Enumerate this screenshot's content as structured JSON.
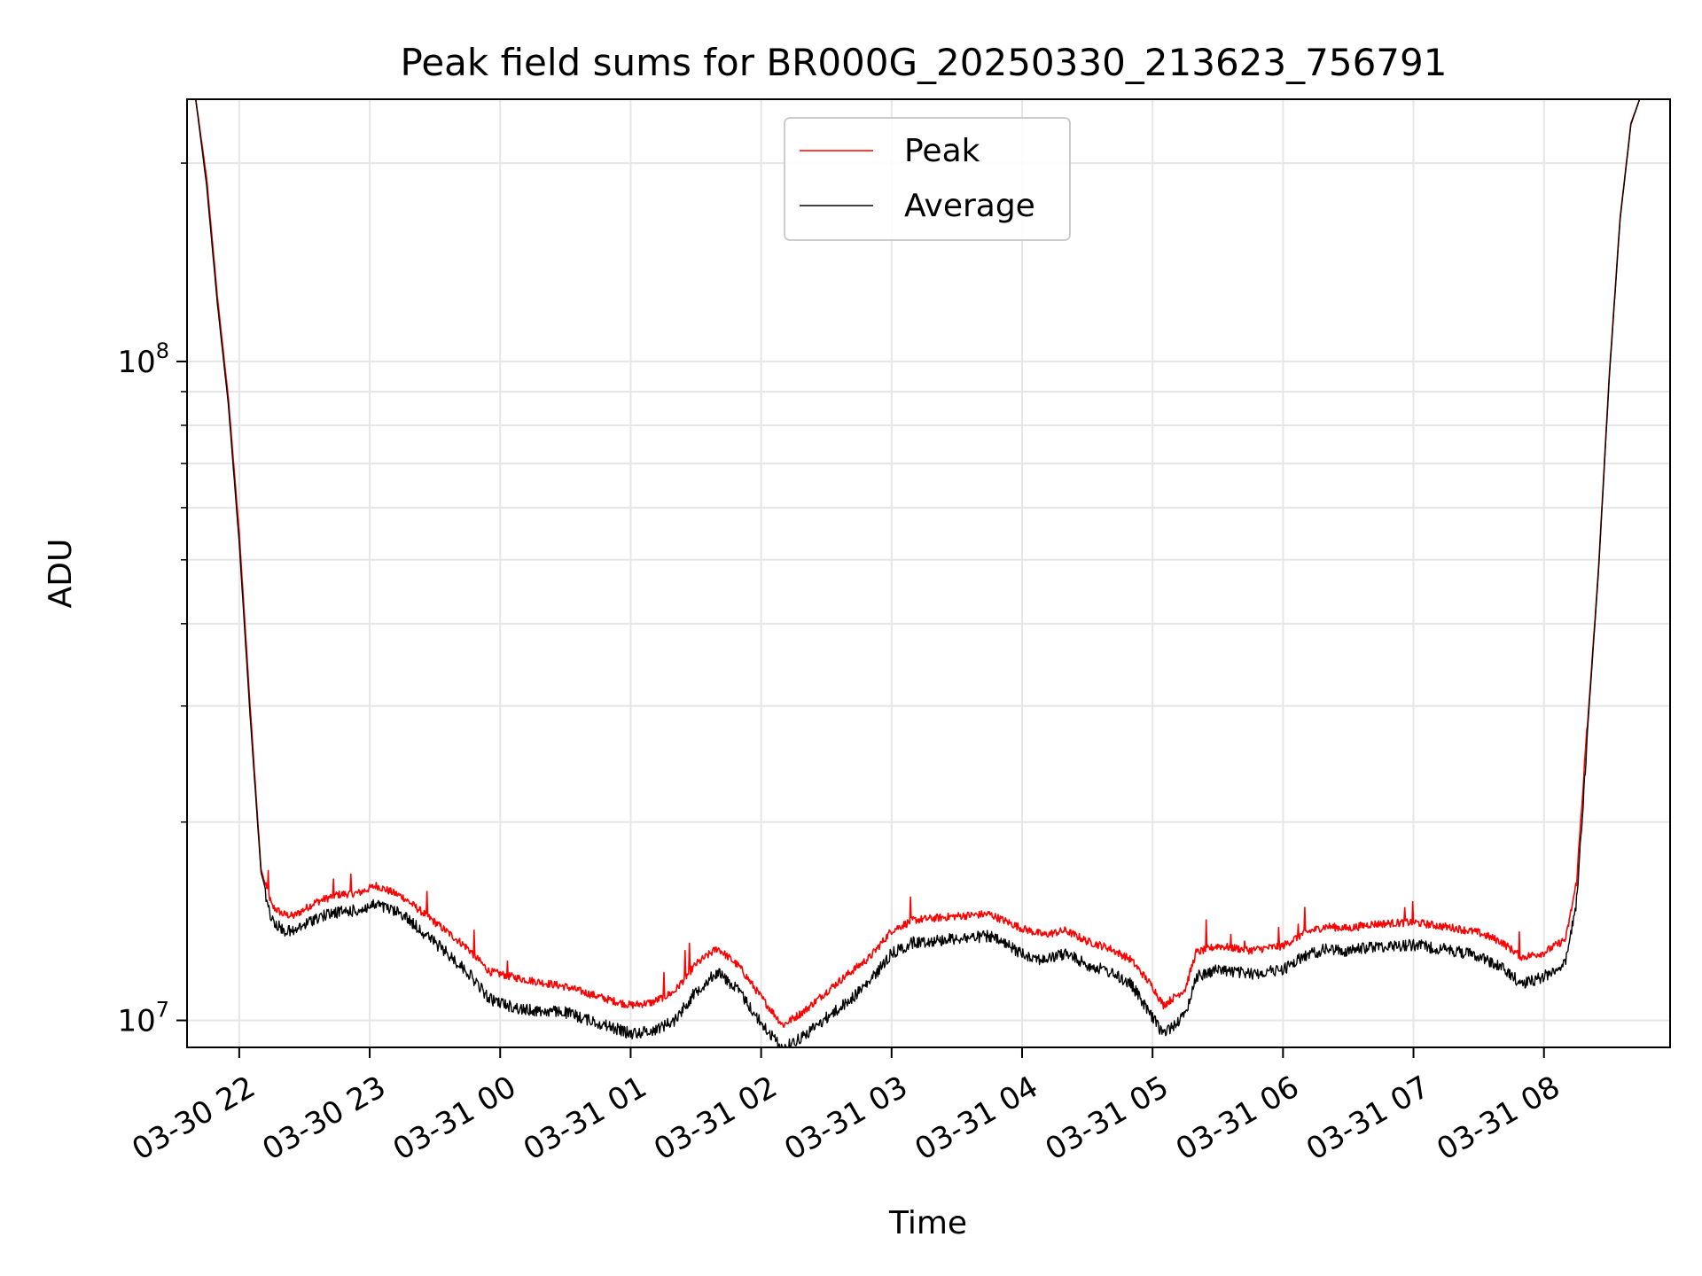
{
  "chart_data": {
    "type": "line",
    "title": "Peak field sums for BR000G_20250330_213623_756791",
    "xlabel": "Time",
    "ylabel": "ADU",
    "y_scale": "log",
    "grid": true,
    "legend_placement": "upper center",
    "x_tick_labels": [
      "03-30 22",
      "03-30 23",
      "03-31 00",
      "03-31 01",
      "03-31 02",
      "03-31 03",
      "03-31 04",
      "03-31 05",
      "03-31 06",
      "03-31 07",
      "03-31 08"
    ],
    "y_tick_labels": [
      "10^7",
      "10^8"
    ],
    "xlim": [
      "2025-03-30 21:36",
      "2025-03-31 08:58"
    ],
    "ylim": [
      9100000,
      250000000
    ],
    "series": [
      {
        "name": "Peak",
        "color": "#ff0000",
        "x": [
          "2025-03-30 21:36",
          "2025-03-30 21:40",
          "2025-03-30 21:45",
          "2025-03-30 21:50",
          "2025-03-30 21:55",
          "2025-03-30 22:00",
          "2025-03-30 22:05",
          "2025-03-30 22:10",
          "2025-03-30 22:15",
          "2025-03-30 22:20",
          "2025-03-30 22:25",
          "2025-03-30 22:35",
          "2025-03-30 22:45",
          "2025-03-30 22:55",
          "2025-03-30 23:03",
          "2025-03-30 23:15",
          "2025-03-30 23:30",
          "2025-03-30 23:45",
          "2025-03-30 23:55",
          "2025-03-31 00:10",
          "2025-03-31 00:30",
          "2025-03-31 00:50",
          "2025-03-31 01:00",
          "2025-03-31 01:10",
          "2025-03-31 01:20",
          "2025-03-31 01:30",
          "2025-03-31 01:40",
          "2025-03-31 01:50",
          "2025-03-31 02:00",
          "2025-03-31 02:10",
          "2025-03-31 02:20",
          "2025-03-31 02:30",
          "2025-03-31 02:40",
          "2025-03-31 02:50",
          "2025-03-31 03:00",
          "2025-03-31 03:10",
          "2025-03-31 03:30",
          "2025-03-31 03:45",
          "2025-03-31 04:00",
          "2025-03-31 04:10",
          "2025-03-31 04:20",
          "2025-03-31 04:30",
          "2025-03-31 04:40",
          "2025-03-31 04:50",
          "2025-03-31 05:00",
          "2025-03-31 05:05",
          "2025-03-31 05:15",
          "2025-03-31 05:20",
          "2025-03-31 05:30",
          "2025-03-31 05:45",
          "2025-03-31 06:00",
          "2025-03-31 06:10",
          "2025-03-31 06:20",
          "2025-03-31 06:30",
          "2025-03-31 06:40",
          "2025-03-31 07:00",
          "2025-03-31 07:20",
          "2025-03-31 07:30",
          "2025-03-31 07:40",
          "2025-03-31 07:50",
          "2025-03-31 08:00",
          "2025-03-31 08:10",
          "2025-03-31 08:15",
          "2025-03-31 08:20",
          "2025-03-31 08:25",
          "2025-03-31 08:30",
          "2025-03-31 08:35",
          "2025-03-31 08:40",
          "2025-03-31 08:44",
          "2025-03-31 08:48"
        ],
        "y": [
          250000000,
          250000000,
          190000000,
          125000000,
          88000000,
          55000000,
          30000000,
          17000000,
          14700000,
          14300000,
          14200000,
          14900000,
          15300000,
          15400000,
          15800000,
          15200000,
          13900000,
          12700000,
          11700000,
          11400000,
          11100000,
          10600000,
          10400000,
          10500000,
          10900000,
          12000000,
          12700000,
          11900000,
          10700000,
          9700000,
          10200000,
          10900000,
          11600000,
          12300000,
          13500000,
          14000000,
          14200000,
          14300000,
          13600000,
          13300000,
          13500000,
          13000000,
          12700000,
          12200000,
          11100000,
          10400000,
          11000000,
          12500000,
          12800000,
          12600000,
          12800000,
          13400000,
          13700000,
          13600000,
          13800000,
          13900000,
          13600000,
          13400000,
          13000000,
          12300000,
          12500000,
          13100000,
          16000000,
          28000000,
          48000000,
          95000000,
          165000000,
          230000000,
          250000000,
          250000000
        ]
      },
      {
        "name": "Average",
        "color": "#000000",
        "x": [
          "2025-03-30 21:36",
          "2025-03-30 21:40",
          "2025-03-30 21:45",
          "2025-03-30 21:50",
          "2025-03-30 21:55",
          "2025-03-30 22:00",
          "2025-03-30 22:05",
          "2025-03-30 22:10",
          "2025-03-30 22:15",
          "2025-03-30 22:20",
          "2025-03-30 22:25",
          "2025-03-30 22:35",
          "2025-03-30 22:45",
          "2025-03-30 22:55",
          "2025-03-30 23:03",
          "2025-03-30 23:15",
          "2025-03-30 23:30",
          "2025-03-30 23:45",
          "2025-03-30 23:55",
          "2025-03-31 00:10",
          "2025-03-31 00:30",
          "2025-03-31 00:50",
          "2025-03-31 01:00",
          "2025-03-31 01:10",
          "2025-03-31 01:20",
          "2025-03-31 01:30",
          "2025-03-31 01:40",
          "2025-03-31 01:50",
          "2025-03-31 02:00",
          "2025-03-31 02:10",
          "2025-03-31 02:20",
          "2025-03-31 02:30",
          "2025-03-31 02:40",
          "2025-03-31 02:50",
          "2025-03-31 03:00",
          "2025-03-31 03:10",
          "2025-03-31 03:30",
          "2025-03-31 03:45",
          "2025-03-31 04:00",
          "2025-03-31 04:10",
          "2025-03-31 04:20",
          "2025-03-31 04:30",
          "2025-03-31 04:40",
          "2025-03-31 04:50",
          "2025-03-31 05:00",
          "2025-03-31 05:05",
          "2025-03-31 05:15",
          "2025-03-31 05:20",
          "2025-03-31 05:30",
          "2025-03-31 05:45",
          "2025-03-31 06:00",
          "2025-03-31 06:10",
          "2025-03-31 06:20",
          "2025-03-31 06:30",
          "2025-03-31 06:40",
          "2025-03-31 07:00",
          "2025-03-31 07:20",
          "2025-03-31 07:30",
          "2025-03-31 07:40",
          "2025-03-31 07:50",
          "2025-03-31 08:00",
          "2025-03-31 08:10",
          "2025-03-31 08:15",
          "2025-03-31 08:20",
          "2025-03-31 08:25",
          "2025-03-31 08:30",
          "2025-03-31 08:35",
          "2025-03-31 08:40",
          "2025-03-31 08:44",
          "2025-03-31 08:48"
        ],
        "y": [
          250000000,
          250000000,
          185000000,
          122000000,
          86000000,
          53000000,
          29000000,
          16800000,
          14500000,
          14000000,
          13900000,
          14600000,
          14900000,
          15000000,
          15300000,
          14800000,
          13400000,
          12100000,
          11000000,
          10600000,
          10500000,
          10000000,
          9750000,
          9850000,
          10200000,
          11300000,
          12100000,
          11300000,
          10100000,
          9250000,
          9700000,
          10300000,
          10900000,
          11700000,
          12900000,
          13400000,
          13600000,
          13700000,
          12900000,
          12600000,
          12900000,
          12400000,
          12100000,
          11600000,
          10300000,
          9750000,
          10400000,
          11900000,
          12200000,
          12000000,
          12200000,
          12800000,
          13100000,
          13000000,
          13200000,
          13300000,
          13000000,
          12800000,
          12300000,
          11600000,
          11900000,
          12500000,
          15500000,
          27500000,
          47500000,
          94000000,
          164000000,
          229000000,
          250000000,
          250000000
        ]
      }
    ]
  }
}
